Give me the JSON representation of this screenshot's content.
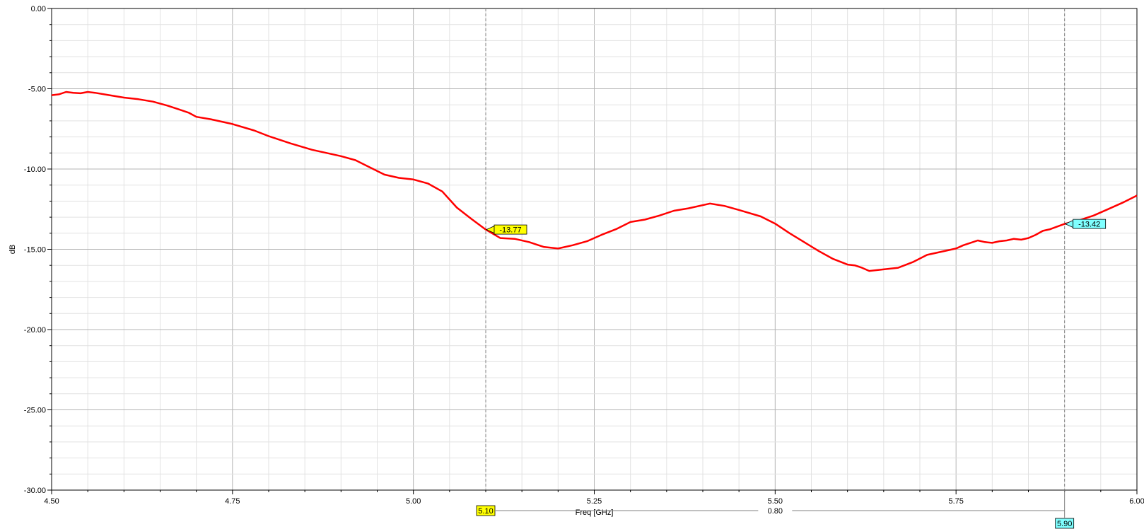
{
  "chart_data": {
    "type": "line",
    "xlabel": "Freq [GHz]",
    "ylabel": "dB",
    "xlim": [
      4.5,
      6.0
    ],
    "ylim": [
      -30,
      0
    ],
    "grid": true,
    "x_ticks": [
      "4.50",
      "4.75",
      "5.00",
      "5.25",
      "5.50",
      "5.75",
      "6.00"
    ],
    "y_ticks": [
      "0.00",
      "-5.00",
      "-10.00",
      "-15.00",
      "-20.00",
      "-25.00",
      "-30.00"
    ],
    "line_color": "#ff0000",
    "series": [
      {
        "x": [
          4.5,
          4.51,
          4.52,
          4.53,
          4.54,
          4.55,
          4.56,
          4.58,
          4.6,
          4.62,
          4.64,
          4.66,
          4.68,
          4.69,
          4.7,
          4.72,
          4.75,
          4.78,
          4.8,
          4.83,
          4.86,
          4.88,
          4.9,
          4.92,
          4.94,
          4.96,
          4.98,
          5.0,
          5.02,
          5.04,
          5.05,
          5.06,
          5.08,
          5.1,
          5.12,
          5.14,
          5.16,
          5.18,
          5.2,
          5.22,
          5.24,
          5.26,
          5.28,
          5.3,
          5.32,
          5.34,
          5.36,
          5.38,
          5.41,
          5.43,
          5.45,
          5.48,
          5.5,
          5.52,
          5.54,
          5.56,
          5.58,
          5.6,
          5.61,
          5.62,
          5.63,
          5.65,
          5.67,
          5.69,
          5.71,
          5.73,
          5.75,
          5.76,
          5.77,
          5.78,
          5.79,
          5.8,
          5.81,
          5.82,
          5.83,
          5.84,
          5.85,
          5.86,
          5.87,
          5.88,
          5.9,
          5.92,
          5.94,
          5.96,
          5.98,
          6.0
        ],
        "y": [
          -5.4,
          -5.35,
          -5.2,
          -5.25,
          -5.28,
          -5.2,
          -5.25,
          -5.4,
          -5.55,
          -5.65,
          -5.8,
          -6.05,
          -6.35,
          -6.5,
          -6.75,
          -6.9,
          -7.2,
          -7.6,
          -7.95,
          -8.4,
          -8.8,
          -9.0,
          -9.2,
          -9.45,
          -9.9,
          -10.35,
          -10.55,
          -10.65,
          -10.9,
          -11.4,
          -11.9,
          -12.4,
          -13.1,
          -13.77,
          -14.3,
          -14.35,
          -14.55,
          -14.85,
          -14.95,
          -14.75,
          -14.5,
          -14.1,
          -13.75,
          -13.3,
          -13.15,
          -12.9,
          -12.6,
          -12.45,
          -12.15,
          -12.3,
          -12.55,
          -12.95,
          -13.4,
          -14.0,
          -14.55,
          -15.1,
          -15.6,
          -15.95,
          -16.0,
          -16.15,
          -16.35,
          -16.25,
          -16.15,
          -15.8,
          -15.35,
          -15.15,
          -14.95,
          -14.75,
          -14.6,
          -14.45,
          -14.55,
          -14.6,
          -14.5,
          -14.45,
          -14.35,
          -14.4,
          -14.3,
          -14.1,
          -13.85,
          -13.75,
          -13.42,
          -13.2,
          -12.9,
          -12.5,
          -12.1,
          -11.65
        ]
      }
    ],
    "markers": [
      {
        "x": 5.1,
        "y": -13.77,
        "x_label": "5.10",
        "y_label": "-13.77",
        "color": "#ffff00"
      },
      {
        "x": 5.9,
        "y": -13.42,
        "x_label": "5.90",
        "y_label": "-13.42",
        "color": "#7fffff"
      }
    ],
    "delta_label": "0.80"
  }
}
